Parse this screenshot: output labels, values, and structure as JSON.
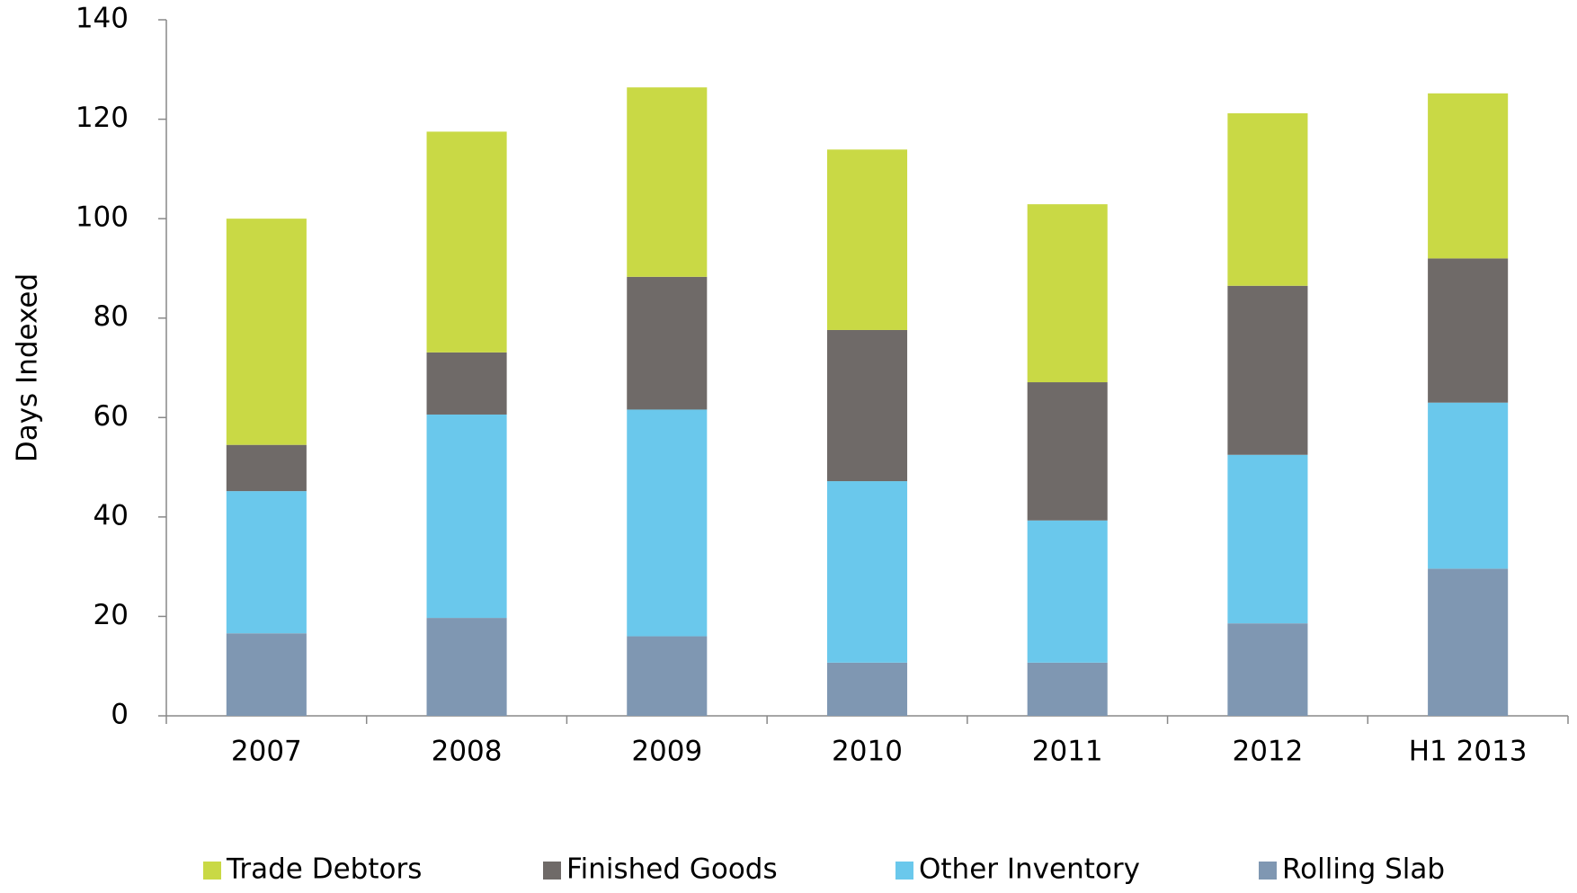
{
  "chart_data": {
    "type": "stacked_bar",
    "y_label": "Days Indexed",
    "categories": [
      "2007",
      "2008",
      "2009",
      "2010",
      "2011",
      "2012",
      "H1 2013"
    ],
    "series": [
      {
        "name": "Trade Debtors",
        "color": "#c9d945",
        "values": [
          45.5,
          44.4,
          38.1,
          36.3,
          35.8,
          34.7,
          33.2
        ]
      },
      {
        "name": "Finished Goods",
        "color": "#6f6a68",
        "values": [
          9.3,
          12.5,
          26.7,
          30.4,
          27.8,
          34.0,
          29.0
        ]
      },
      {
        "name": "Other Inventory",
        "color": "#6ac8ec",
        "values": [
          28.6,
          40.9,
          45.6,
          36.5,
          28.6,
          33.9,
          33.4
        ]
      },
      {
        "name": "Rolling Slab",
        "color": "#7f97b2",
        "values": [
          16.6,
          19.7,
          16.0,
          10.7,
          10.7,
          18.6,
          29.6
        ]
      }
    ],
    "ylim": [
      0,
      140
    ],
    "yticks": [
      0,
      20,
      40,
      60,
      80,
      100,
      120,
      140
    ],
    "grid": false,
    "legend": "bottom"
  }
}
